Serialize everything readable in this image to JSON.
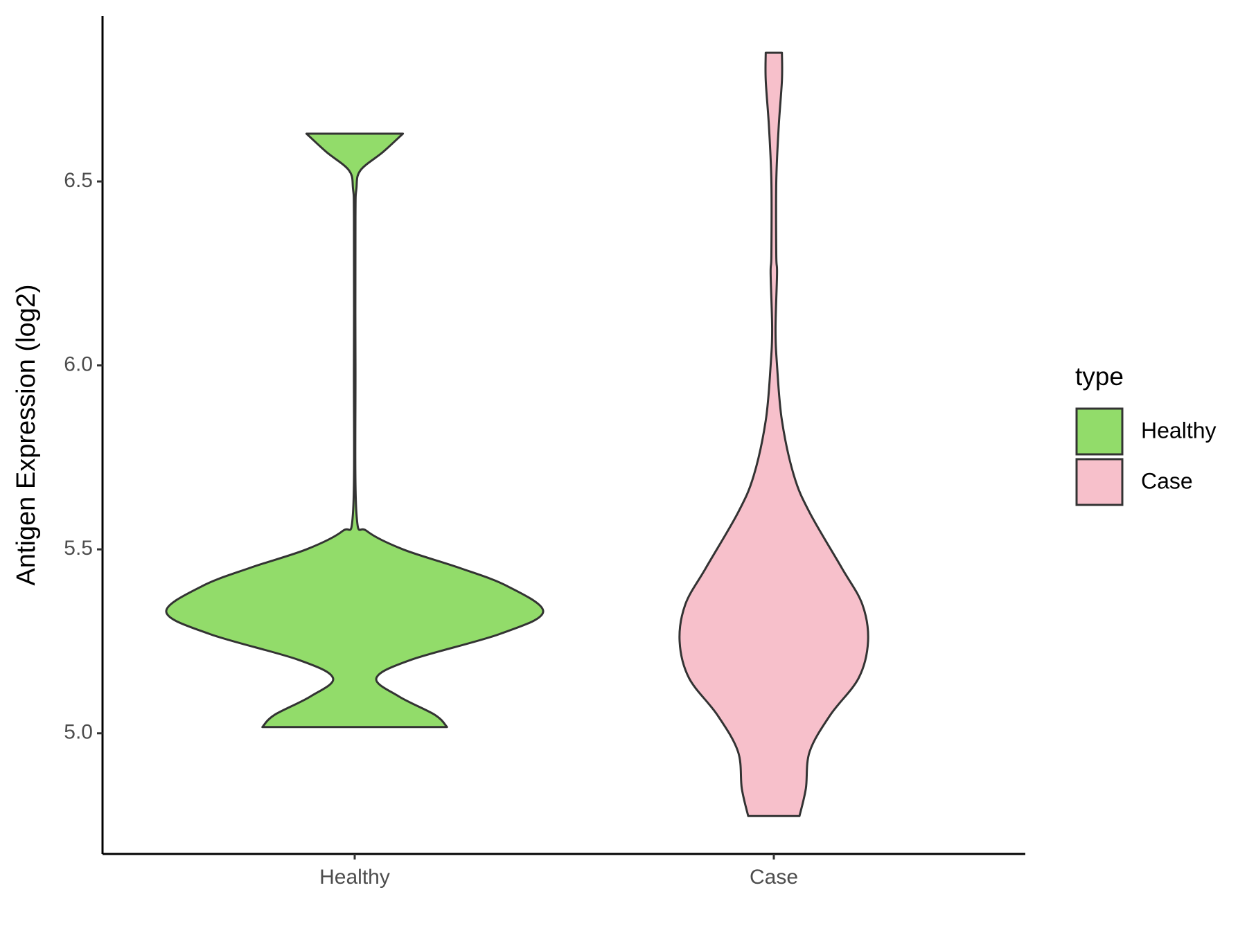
{
  "chart_data": {
    "type": "violin",
    "y_label": "Antigen Expression (log2)",
    "legend_title": "type",
    "categories": [
      "Healthy",
      "Case"
    ],
    "ylim": [
      4.672,
      6.95
    ],
    "yticks": [
      {
        "value": 5,
        "label": "5.0"
      },
      {
        "value": 5.5,
        "label": "5.5"
      },
      {
        "value": 6,
        "label": "6.0"
      },
      {
        "value": 6.5,
        "label": "6.5"
      }
    ],
    "series": [
      {
        "name": "Healthy",
        "color": "#92dc6a",
        "y": [
          6.63,
          6.58,
          6.53,
          6.48,
          6.4,
          6.0,
          5.6,
          5.55,
          5.5,
          5.45,
          5.4,
          5.33,
          5.27,
          5.2,
          5.15,
          5.1,
          5.05,
          5.017
        ],
        "density": [
          0.256,
          0.15,
          0.03,
          0.009,
          0.004,
          0.004,
          0.009,
          0.064,
          0.256,
          0.554,
          0.81,
          1.0,
          0.77,
          0.3,
          0.115,
          0.235,
          0.426,
          0.49
        ]
      },
      {
        "name": "Case",
        "color": "#f7c0cb",
        "y": [
          6.85,
          6.775,
          6.65,
          6.5,
          6.3,
          6.25,
          6.1,
          6.0,
          5.85,
          5.7,
          5.6,
          5.45,
          5.35,
          5.25,
          5.15,
          5.05,
          4.95,
          4.85,
          4.775
        ],
        "density": [
          0.043,
          0.043,
          0.026,
          0.013,
          0.013,
          0.017,
          0.009,
          0.017,
          0.043,
          0.107,
          0.19,
          0.36,
          0.47,
          0.5,
          0.45,
          0.3,
          0.19,
          0.17,
          0.136
        ]
      }
    ]
  }
}
